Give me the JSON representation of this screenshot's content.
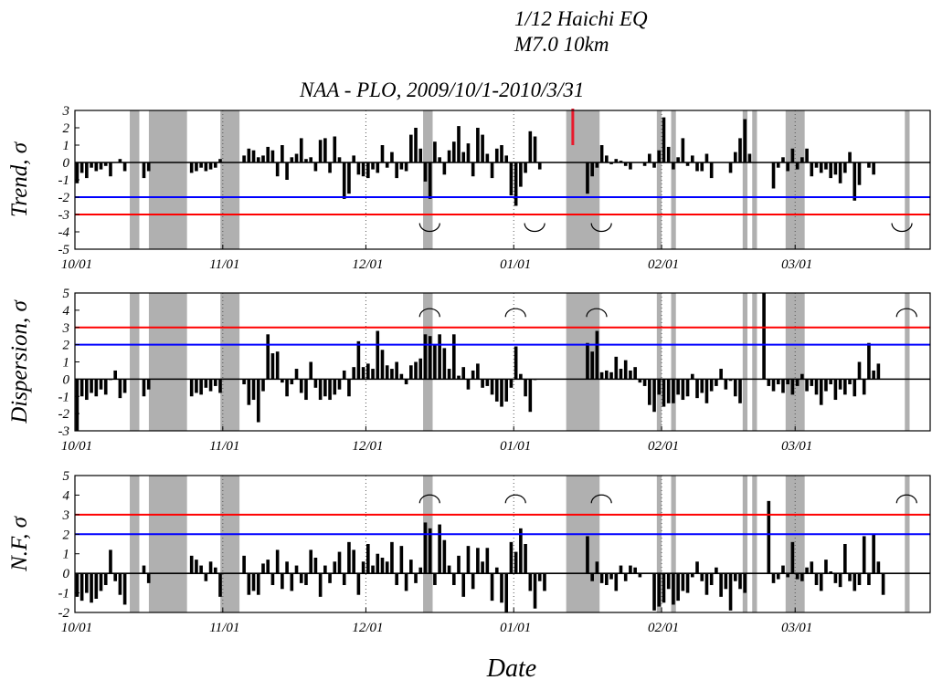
{
  "figure": {
    "title_lines": [
      "1/12 Haichi EQ",
      "M7.0 10km"
    ],
    "subtitle": "NAA - PLO, 2009/10/1-2010/3/31",
    "xlabel": "Date"
  },
  "colors": {
    "upper_threshold": "#ff0000",
    "lower_threshold": "#0000ff",
    "shade": "#b0b0b0",
    "bar": "#000000",
    "event_marker": "#e8192c"
  },
  "chart_data": [
    {
      "type": "bar",
      "ylabel": "Trend,  σ",
      "ylim": [
        -5,
        3
      ],
      "yticks": [
        3,
        2,
        1,
        0,
        -1,
        -2,
        -3,
        -4,
        -5
      ],
      "threshold_lines": [
        {
          "value": -2,
          "color": "blue"
        },
        {
          "value": -3,
          "color": "red"
        }
      ],
      "x_tick_labels": [
        "10/01",
        "11/01",
        "12/01",
        "01/01",
        "02/01",
        "03/01"
      ],
      "x_tick_days": [
        0,
        31,
        61,
        92,
        123,
        151
      ],
      "shaded_day_ranges": [
        [
          11.5,
          13.5
        ],
        [
          15.5,
          23.5
        ],
        [
          30.5,
          34.5
        ],
        [
          73,
          75
        ],
        [
          103,
          110
        ],
        [
          122,
          123
        ],
        [
          125,
          126
        ],
        [
          140,
          141
        ],
        [
          142,
          143
        ],
        [
          149,
          153
        ],
        [
          174,
          175
        ]
      ],
      "event_marker_day": 104,
      "anomaly_days": [
        74,
        96,
        110,
        173
      ],
      "values": [
        -1.2,
        -0.6,
        -0.9,
        -0.3,
        -0.5,
        -0.4,
        -0.2,
        -0.8,
        null,
        0.2,
        -0.5,
        null,
        null,
        null,
        -0.9,
        -0.5,
        null,
        null,
        null,
        null,
        null,
        null,
        null,
        null,
        -0.6,
        -0.5,
        -0.3,
        -0.5,
        -0.4,
        -0.3,
        0.2,
        null,
        null,
        null,
        null,
        0.4,
        0.8,
        0.7,
        0.3,
        0.4,
        0.9,
        0.7,
        -0.8,
        1.0,
        -1.0,
        0.3,
        0.5,
        1.4,
        0.2,
        0.3,
        -0.5,
        1.3,
        1.4,
        -0.6,
        1.5,
        0.3,
        -2.1,
        -1.8,
        0.4,
        -0.7,
        -0.8,
        -0.9,
        -0.4,
        -0.6,
        1.0,
        -0.3,
        0.6,
        -0.9,
        -0.4,
        -0.5,
        1.6,
        2.0,
        0.8,
        -1.1,
        -2.1,
        1.2,
        0.3,
        -0.7,
        0.7,
        1.2,
        2.1,
        0.6,
        1.1,
        -0.8,
        2.0,
        1.6,
        0.5,
        -0.9,
        0.8,
        1.0,
        0.4,
        -1.9,
        -2.5,
        -1.4,
        -0.6,
        1.8,
        1.5,
        -0.4,
        null,
        null,
        null,
        null,
        null,
        null,
        null,
        null,
        null,
        -1.8,
        -0.8,
        -0.3,
        1.0,
        0.4,
        -0.1,
        0.2,
        0.1,
        -0.2,
        -0.4,
        null,
        null,
        -0.2,
        0.5,
        -0.3,
        0.7,
        2.6,
        0.9,
        -0.4,
        0.3,
        1.4,
        -0.2,
        0.4,
        -0.5,
        -0.5,
        0.5,
        -0.9,
        null,
        null,
        null,
        -0.6,
        0.6,
        1.4,
        2.5,
        0.5,
        null,
        null,
        null,
        null,
        -1.5,
        -0.3,
        0.3,
        -0.5,
        0.8,
        -0.4,
        0.3,
        0.8,
        -0.8,
        -0.3,
        -0.6,
        -0.4,
        -0.9,
        -0.7,
        -1.2,
        -0.6,
        0.6,
        -2.2,
        -1.3,
        null,
        -0.3,
        -0.7
      ]
    },
    {
      "type": "bar",
      "ylabel": "Dispersion,  σ",
      "ylim": [
        -3,
        5
      ],
      "yticks": [
        5,
        4,
        3,
        2,
        1,
        0,
        -1,
        -2,
        -3
      ],
      "threshold_lines": [
        {
          "value": 3,
          "color": "red"
        },
        {
          "value": 2,
          "color": "blue"
        }
      ],
      "x_tick_labels": [
        "10/01",
        "11/01",
        "12/01",
        "01/01",
        "02/01",
        "03/01"
      ],
      "x_tick_days": [
        0,
        31,
        61,
        92,
        123,
        151
      ],
      "shaded_day_ranges": [
        [
          11.5,
          13.5
        ],
        [
          15.5,
          23.5
        ],
        [
          30.5,
          34.5
        ],
        [
          73,
          75
        ],
        [
          103,
          110
        ],
        [
          122,
          123
        ],
        [
          125,
          126
        ],
        [
          140,
          141
        ],
        [
          142,
          143
        ],
        [
          149,
          153
        ],
        [
          174,
          175
        ]
      ],
      "anomaly_days": [
        74,
        92,
        109,
        174
      ],
      "values": [
        -3.0,
        -1.0,
        -1.2,
        -0.8,
        -1.0,
        -0.6,
        -0.9,
        0.0,
        0.5,
        -1.1,
        -0.8,
        null,
        null,
        null,
        -1.0,
        -0.6,
        null,
        null,
        null,
        null,
        null,
        null,
        null,
        null,
        -1.0,
        -0.8,
        -0.9,
        -0.5,
        -0.7,
        -0.4,
        -0.8,
        null,
        null,
        null,
        null,
        -0.3,
        -1.5,
        -1.2,
        -2.5,
        -0.7,
        2.6,
        1.5,
        1.6,
        -0.2,
        -1.0,
        -0.3,
        0.6,
        -0.8,
        -1.2,
        1.0,
        -0.5,
        -1.2,
        -1.0,
        -1.2,
        -0.9,
        -0.6,
        0.5,
        -1.0,
        0.7,
        2.2,
        0.7,
        0.9,
        0.6,
        2.8,
        1.7,
        0.8,
        0.6,
        1.0,
        0.3,
        -0.3,
        0.8,
        1.0,
        1.2,
        2.6,
        2.5,
        2.0,
        2.6,
        1.8,
        0.6,
        2.6,
        0.2,
        0.7,
        -0.6,
        0.5,
        0.9,
        -0.5,
        -0.4,
        -0.9,
        -1.3,
        -1.6,
        -1.3,
        -0.5,
        1.9,
        0.3,
        -1.0,
        -1.9,
        0.0,
        null,
        null,
        null,
        null,
        null,
        null,
        null,
        null,
        null,
        null,
        2.1,
        1.6,
        2.8,
        0.4,
        0.5,
        0.4,
        1.3,
        0.6,
        1.1,
        0.5,
        0.7,
        -0.2,
        -0.4,
        -1.5,
        -1.9,
        -0.9,
        -1.6,
        -1.4,
        -1.4,
        -0.9,
        -1.2,
        -1.0,
        0.3,
        -1.1,
        -0.8,
        -1.4,
        -0.7,
        -0.4,
        0.6,
        -0.6,
        -0.1,
        -1.0,
        -1.4,
        null,
        null,
        null,
        null,
        5.0,
        -0.4,
        -0.7,
        -0.3,
        -0.8,
        -0.3,
        -0.9,
        -0.4,
        0.3,
        -0.7,
        -0.4,
        -0.9,
        -1.5,
        -0.7,
        -0.3,
        -1.2,
        -0.6,
        -0.9,
        -0.3,
        -1.0,
        1.0,
        -0.9,
        2.1,
        0.5,
        0.9
      ]
    },
    {
      "type": "bar",
      "ylabel": "N.F,  σ",
      "ylim": [
        -2,
        5
      ],
      "yticks": [
        5,
        4,
        3,
        2,
        1,
        0,
        -1,
        -2
      ],
      "threshold_lines": [
        {
          "value": 3,
          "color": "red"
        },
        {
          "value": 2,
          "color": "blue"
        }
      ],
      "x_tick_labels": [
        "10/01",
        "11/01",
        "12/01",
        "01/01",
        "02/01",
        "03/01"
      ],
      "x_tick_days": [
        0,
        31,
        61,
        92,
        123,
        151
      ],
      "shaded_day_ranges": [
        [
          11.5,
          13.5
        ],
        [
          15.5,
          23.5
        ],
        [
          30.5,
          34.5
        ],
        [
          73,
          75
        ],
        [
          103,
          110
        ],
        [
          122,
          123
        ],
        [
          125,
          126
        ],
        [
          140,
          141
        ],
        [
          142,
          143
        ],
        [
          149,
          153
        ],
        [
          174,
          175
        ]
      ],
      "anomaly_days": [
        74,
        92,
        110,
        174
      ],
      "values": [
        -1.2,
        -1.4,
        -1.0,
        -1.5,
        -1.3,
        -0.9,
        -0.6,
        1.2,
        -0.4,
        -1.1,
        -1.6,
        null,
        null,
        null,
        0.4,
        -0.5,
        null,
        null,
        null,
        null,
        null,
        null,
        null,
        null,
        0.9,
        0.7,
        0.4,
        -0.4,
        0.6,
        0.3,
        -1.2,
        null,
        null,
        null,
        null,
        0.9,
        -1.1,
        -0.9,
        -1.1,
        0.5,
        0.7,
        -0.6,
        1.2,
        -0.8,
        0.6,
        -0.9,
        0.4,
        -0.5,
        -0.6,
        1.2,
        0.8,
        -1.2,
        0.4,
        -0.5,
        0.6,
        1.1,
        -0.6,
        1.6,
        1.2,
        -1.1,
        0.6,
        1.5,
        0.4,
        1.0,
        0.8,
        0.6,
        1.6,
        -0.6,
        1.4,
        -0.9,
        0.7,
        -0.5,
        0.3,
        2.6,
        2.3,
        -0.6,
        2.5,
        1.7,
        0.4,
        -0.6,
        0.9,
        -1.2,
        1.4,
        -0.8,
        1.3,
        0.6,
        1.3,
        -1.4,
        0.3,
        -1.5,
        -2.0,
        1.6,
        1.1,
        2.3,
        1.5,
        -0.9,
        -1.8,
        -0.4,
        -0.9,
        null,
        null,
        null,
        null,
        null,
        null,
        null,
        null,
        1.9,
        -0.4,
        0.6,
        -0.5,
        -0.6,
        -0.3,
        -0.9,
        0.4,
        -0.4,
        0.4,
        0.3,
        -0.2,
        null,
        null,
        -1.9,
        -1.7,
        -1.5,
        -0.8,
        -1.6,
        -1.4,
        -0.9,
        -1.0,
        -0.2,
        0.6,
        -0.4,
        -1.1,
        -0.6,
        0.3,
        -1.2,
        -0.8,
        -1.9,
        -0.4,
        -0.8,
        -1.0,
        null,
        null,
        null,
        null,
        3.7,
        -0.5,
        -0.3,
        0.4,
        -0.2,
        1.6,
        -0.3,
        -0.4,
        0.3,
        0.6,
        -0.6,
        -0.9,
        0.7,
        0.1,
        -0.5,
        -0.7,
        1.5,
        -0.4,
        -0.9,
        -0.6,
        1.9,
        -0.6,
        2.0,
        0.6,
        -1.1
      ]
    }
  ]
}
